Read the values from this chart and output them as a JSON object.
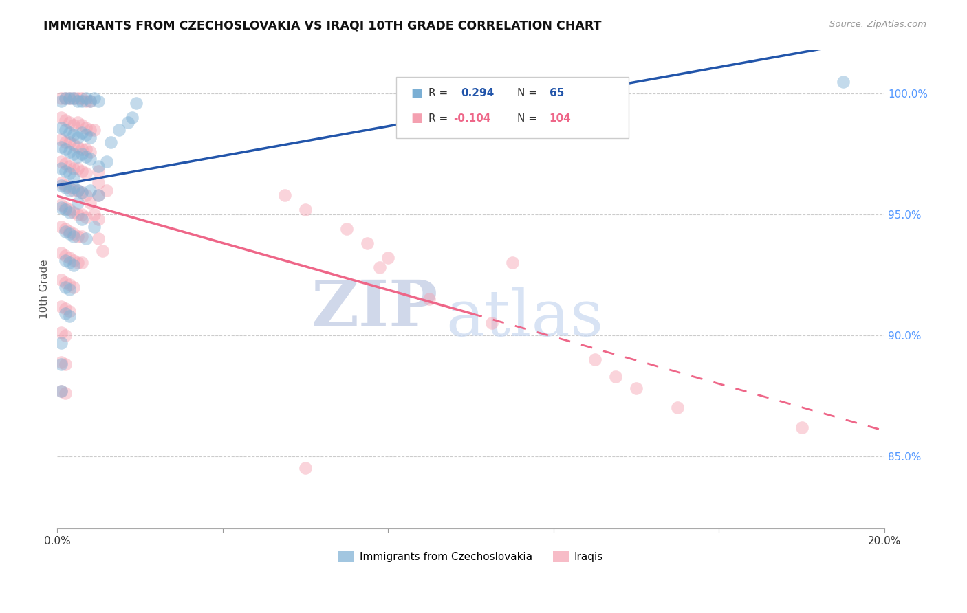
{
  "title": "IMMIGRANTS FROM CZECHOSLOVAKIA VS IRAQI 10TH GRADE CORRELATION CHART",
  "source": "Source: ZipAtlas.com",
  "ylabel": "10th Grade",
  "y_ticks": [
    0.85,
    0.9,
    0.95,
    1.0
  ],
  "y_tick_labels": [
    "85.0%",
    "90.0%",
    "95.0%",
    "100.0%"
  ],
  "xlim": [
    0.0,
    0.2
  ],
  "ylim": [
    0.82,
    1.018
  ],
  "blue_color": "#7BAFD4",
  "pink_color": "#F4A0B0",
  "blue_line_color": "#2255AA",
  "pink_line_color": "#EE6688",
  "watermark_zip": "ZIP",
  "watermark_atlas": "atlas",
  "legend_blue": "Immigrants from Czechoslovakia",
  "legend_pink": "Iraqis",
  "blue_scatter": [
    [
      0.001,
      0.997
    ],
    [
      0.002,
      0.998
    ],
    [
      0.003,
      0.998
    ],
    [
      0.004,
      0.998
    ],
    [
      0.005,
      0.997
    ],
    [
      0.006,
      0.997
    ],
    [
      0.007,
      0.998
    ],
    [
      0.008,
      0.997
    ],
    [
      0.009,
      0.998
    ],
    [
      0.01,
      0.997
    ],
    [
      0.001,
      0.986
    ],
    [
      0.002,
      0.985
    ],
    [
      0.003,
      0.984
    ],
    [
      0.004,
      0.983
    ],
    [
      0.005,
      0.982
    ],
    [
      0.006,
      0.984
    ],
    [
      0.007,
      0.983
    ],
    [
      0.008,
      0.982
    ],
    [
      0.001,
      0.978
    ],
    [
      0.002,
      0.977
    ],
    [
      0.003,
      0.976
    ],
    [
      0.004,
      0.975
    ],
    [
      0.005,
      0.974
    ],
    [
      0.006,
      0.975
    ],
    [
      0.007,
      0.974
    ],
    [
      0.008,
      0.973
    ],
    [
      0.001,
      0.969
    ],
    [
      0.002,
      0.968
    ],
    [
      0.003,
      0.967
    ],
    [
      0.001,
      0.962
    ],
    [
      0.002,
      0.961
    ],
    [
      0.003,
      0.96
    ],
    [
      0.004,
      0.961
    ],
    [
      0.005,
      0.96
    ],
    [
      0.006,
      0.959
    ],
    [
      0.001,
      0.953
    ],
    [
      0.002,
      0.952
    ],
    [
      0.003,
      0.951
    ],
    [
      0.002,
      0.943
    ],
    [
      0.003,
      0.942
    ],
    [
      0.004,
      0.941
    ],
    [
      0.002,
      0.931
    ],
    [
      0.003,
      0.93
    ],
    [
      0.004,
      0.929
    ],
    [
      0.002,
      0.92
    ],
    [
      0.003,
      0.919
    ],
    [
      0.002,
      0.909
    ],
    [
      0.003,
      0.908
    ],
    [
      0.001,
      0.897
    ],
    [
      0.001,
      0.888
    ],
    [
      0.001,
      0.877
    ],
    [
      0.004,
      0.965
    ],
    [
      0.005,
      0.955
    ],
    [
      0.006,
      0.948
    ],
    [
      0.007,
      0.94
    ],
    [
      0.008,
      0.96
    ],
    [
      0.009,
      0.945
    ],
    [
      0.01,
      0.958
    ],
    [
      0.012,
      0.972
    ],
    [
      0.01,
      0.97
    ],
    [
      0.013,
      0.98
    ],
    [
      0.015,
      0.985
    ],
    [
      0.017,
      0.988
    ],
    [
      0.018,
      0.99
    ],
    [
      0.019,
      0.996
    ],
    [
      0.19,
      1.005
    ]
  ],
  "pink_scatter": [
    [
      0.001,
      0.998
    ],
    [
      0.002,
      0.998
    ],
    [
      0.003,
      0.998
    ],
    [
      0.004,
      0.998
    ],
    [
      0.005,
      0.998
    ],
    [
      0.006,
      0.998
    ],
    [
      0.007,
      0.997
    ],
    [
      0.008,
      0.997
    ],
    [
      0.001,
      0.99
    ],
    [
      0.002,
      0.989
    ],
    [
      0.003,
      0.988
    ],
    [
      0.004,
      0.987
    ],
    [
      0.005,
      0.988
    ],
    [
      0.006,
      0.987
    ],
    [
      0.007,
      0.986
    ],
    [
      0.008,
      0.985
    ],
    [
      0.009,
      0.985
    ],
    [
      0.001,
      0.981
    ],
    [
      0.002,
      0.98
    ],
    [
      0.003,
      0.98
    ],
    [
      0.004,
      0.979
    ],
    [
      0.005,
      0.978
    ],
    [
      0.006,
      0.977
    ],
    [
      0.007,
      0.977
    ],
    [
      0.008,
      0.976
    ],
    [
      0.001,
      0.972
    ],
    [
      0.002,
      0.971
    ],
    [
      0.003,
      0.97
    ],
    [
      0.004,
      0.969
    ],
    [
      0.005,
      0.969
    ],
    [
      0.006,
      0.968
    ],
    [
      0.007,
      0.967
    ],
    [
      0.001,
      0.963
    ],
    [
      0.002,
      0.962
    ],
    [
      0.003,
      0.961
    ],
    [
      0.004,
      0.96
    ],
    [
      0.005,
      0.96
    ],
    [
      0.006,
      0.959
    ],
    [
      0.007,
      0.958
    ],
    [
      0.001,
      0.954
    ],
    [
      0.002,
      0.953
    ],
    [
      0.003,
      0.952
    ],
    [
      0.004,
      0.951
    ],
    [
      0.005,
      0.95
    ],
    [
      0.006,
      0.95
    ],
    [
      0.007,
      0.949
    ],
    [
      0.001,
      0.945
    ],
    [
      0.002,
      0.944
    ],
    [
      0.003,
      0.943
    ],
    [
      0.004,
      0.942
    ],
    [
      0.005,
      0.941
    ],
    [
      0.006,
      0.941
    ],
    [
      0.001,
      0.934
    ],
    [
      0.002,
      0.933
    ],
    [
      0.003,
      0.932
    ],
    [
      0.004,
      0.931
    ],
    [
      0.005,
      0.93
    ],
    [
      0.006,
      0.93
    ],
    [
      0.001,
      0.923
    ],
    [
      0.002,
      0.922
    ],
    [
      0.003,
      0.921
    ],
    [
      0.004,
      0.92
    ],
    [
      0.001,
      0.912
    ],
    [
      0.002,
      0.911
    ],
    [
      0.003,
      0.91
    ],
    [
      0.001,
      0.901
    ],
    [
      0.002,
      0.9
    ],
    [
      0.001,
      0.889
    ],
    [
      0.002,
      0.888
    ],
    [
      0.001,
      0.877
    ],
    [
      0.002,
      0.876
    ],
    [
      0.008,
      0.955
    ],
    [
      0.009,
      0.95
    ],
    [
      0.01,
      0.968
    ],
    [
      0.01,
      0.958
    ],
    [
      0.01,
      0.948
    ],
    [
      0.01,
      0.94
    ],
    [
      0.011,
      0.935
    ],
    [
      0.01,
      0.963
    ],
    [
      0.012,
      0.96
    ],
    [
      0.055,
      0.958
    ],
    [
      0.06,
      0.952
    ],
    [
      0.07,
      0.944
    ],
    [
      0.075,
      0.938
    ],
    [
      0.08,
      0.932
    ],
    [
      0.078,
      0.928
    ],
    [
      0.09,
      0.915
    ],
    [
      0.105,
      0.905
    ],
    [
      0.11,
      0.93
    ],
    [
      0.13,
      0.89
    ],
    [
      0.135,
      0.883
    ],
    [
      0.14,
      0.878
    ],
    [
      0.15,
      0.87
    ],
    [
      0.06,
      0.845
    ],
    [
      0.18,
      0.862
    ]
  ]
}
